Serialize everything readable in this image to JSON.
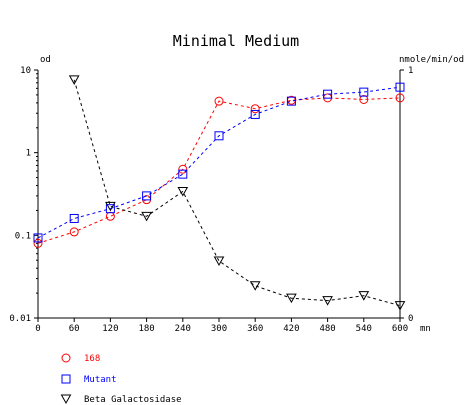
{
  "chart_data": {
    "type": "line",
    "title": "Minimal Medium",
    "xlabel": "mn",
    "ylabel_left": "od",
    "ylabel_right": "nmole/min/od",
    "x_ticks": [
      "0",
      "60",
      "120",
      "180",
      "240",
      "300",
      "360",
      "420",
      "480",
      "540",
      "600"
    ],
    "xlim": [
      0,
      600
    ],
    "y_left": {
      "scale": "log",
      "ylim": [
        0.01,
        10
      ],
      "ticks": [
        {
          "value": 10,
          "label": "10"
        },
        {
          "value": 1,
          "label": "1"
        },
        {
          "value": 0.1,
          "label": "0.1"
        },
        {
          "value": 0.01,
          "label": "0.01"
        }
      ]
    },
    "y_right": {
      "scale": "linear",
      "ylim": [
        0,
        1
      ],
      "ticks": [
        {
          "value": 1,
          "label": "1"
        },
        {
          "value": 0,
          "label": "0"
        }
      ]
    },
    "grid": false,
    "legend_position": "bottom-left",
    "series": [
      {
        "name": "168",
        "color": "#ff0000",
        "marker": "circle",
        "axis": "left",
        "x": [
          0,
          60,
          120,
          180,
          240,
          300,
          360,
          420,
          480,
          540,
          600
        ],
        "y": [
          0.08,
          0.11,
          0.17,
          0.27,
          0.63,
          4.2,
          3.4,
          4.3,
          4.6,
          4.4,
          4.6
        ]
      },
      {
        "name": "Mutant",
        "color": "#0000ff",
        "marker": "square",
        "axis": "left",
        "x": [
          0,
          60,
          120,
          180,
          240,
          300,
          360,
          420,
          480,
          540,
          600
        ],
        "y": [
          0.093,
          0.16,
          0.21,
          0.3,
          0.55,
          1.6,
          2.9,
          4.2,
          5.1,
          5.4,
          6.2
        ]
      },
      {
        "name": "Beta Galactosidase",
        "color": "#000000",
        "marker": "triangle-down",
        "axis": "right",
        "x": [
          60,
          120,
          180,
          240,
          300,
          360,
          420,
          480,
          540,
          600
        ],
        "y": [
          0.96,
          0.45,
          0.41,
          0.51,
          0.23,
          0.13,
          0.08,
          0.07,
          0.09,
          0.05
        ]
      }
    ]
  }
}
